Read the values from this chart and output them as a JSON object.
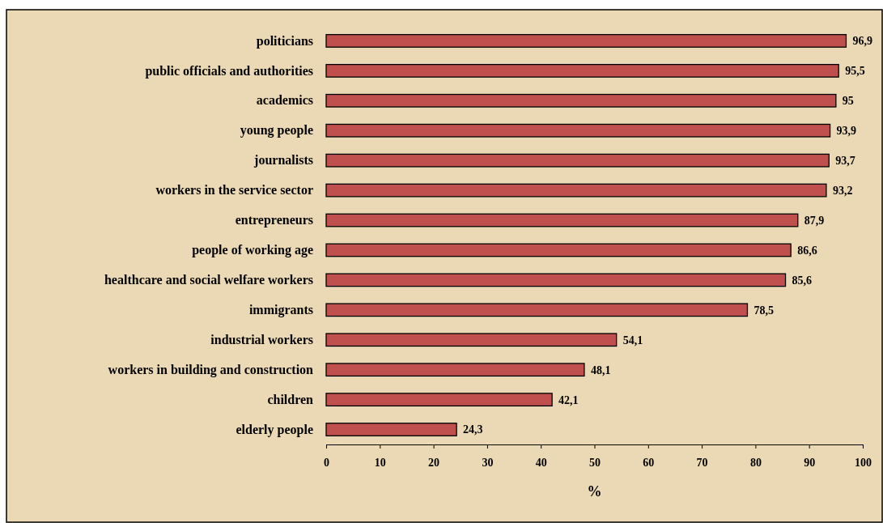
{
  "chart_data": {
    "type": "bar",
    "orientation": "horizontal",
    "xlabel": "%",
    "categories": [
      "politicians",
      "public officials and authorities",
      "academics",
      "young people",
      "journalists",
      "workers in the service sector",
      "entrepreneurs",
      "people of working age",
      "healthcare and social welfare workers",
      "immigrants",
      "industrial workers",
      "workers in building and construction",
      "children",
      "elderly people"
    ],
    "values": [
      96.9,
      95.5,
      95,
      93.9,
      93.7,
      93.2,
      87.9,
      86.6,
      85.6,
      78.5,
      54.1,
      48.1,
      42.1,
      24.3
    ],
    "value_labels": [
      "96,9",
      "95,5",
      "95",
      "93,9",
      "93,7",
      "93,2",
      "87,9",
      "86,6",
      "85,6",
      "78,5",
      "54,1",
      "48,1",
      "42,1",
      "24,3"
    ],
    "color": "#c0504d",
    "xlim": [
      0,
      100
    ],
    "xticks": [
      0,
      10,
      20,
      30,
      40,
      50,
      60,
      70,
      80,
      90,
      100
    ],
    "grid": false
  }
}
